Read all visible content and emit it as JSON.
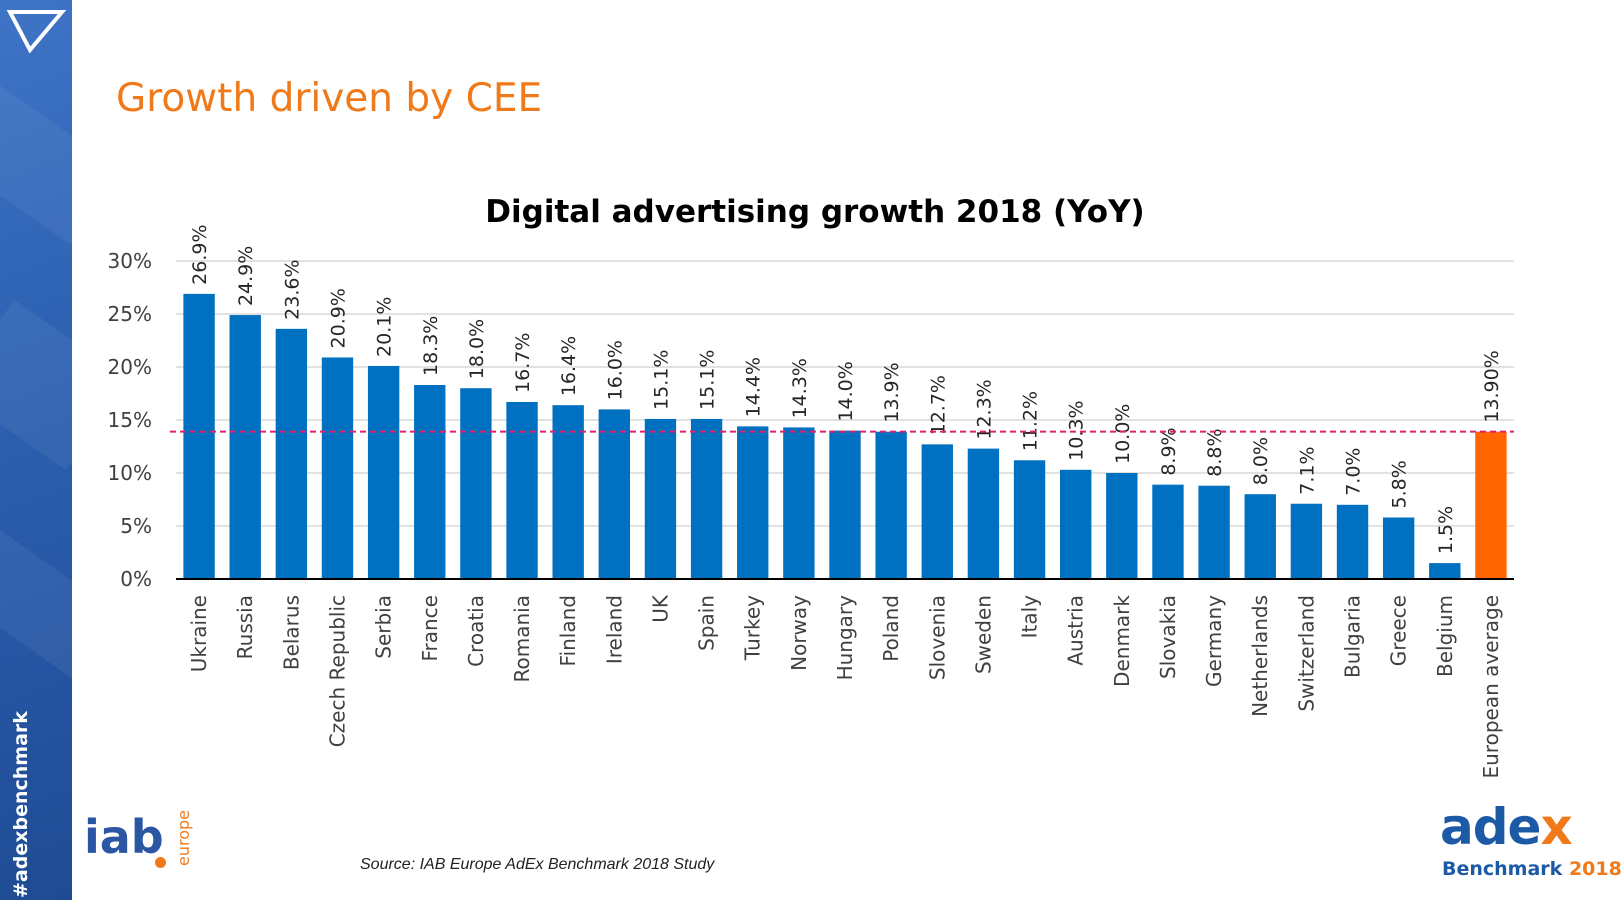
{
  "slide": {
    "title": "Growth driven by CEE",
    "hashtag": "#adexbenchmark",
    "source": "Source: IAB Europe AdEx Benchmark 2018 Study"
  },
  "logos": {
    "iab": {
      "text": "iab",
      "sub": "europe"
    },
    "adex": {
      "word_main": "ade",
      "word_accent": "x",
      "sub_main": "Benchmark ",
      "sub_year": "2018"
    }
  },
  "colors": {
    "bar": "#0070c0",
    "highlight_bar": "#ff6600",
    "average_line": "#e0226e",
    "title": "#f07a1a",
    "sidebar": "#2f63b4"
  },
  "chart_data": {
    "type": "bar",
    "title": "Digital advertising growth 2018 (YoY)",
    "xlabel": "",
    "ylabel": "",
    "ylim": [
      0,
      30
    ],
    "yticks": [
      0,
      5,
      10,
      15,
      20,
      25,
      30
    ],
    "ytick_labels": [
      "0%",
      "5%",
      "10%",
      "15%",
      "20%",
      "25%",
      "30%"
    ],
    "grid": true,
    "average_line_value": 13.9,
    "categories": [
      "Ukraine",
      "Russia",
      "Belarus",
      "Czech Republic",
      "Serbia",
      "France",
      "Croatia",
      "Romania",
      "Finland",
      "Ireland",
      "UK",
      "Spain",
      "Turkey",
      "Norway",
      "Hungary",
      "Poland",
      "Slovenia",
      "Sweden",
      "Italy",
      "Austria",
      "Denmark",
      "Slovakia",
      "Germany",
      "Netherlands",
      "Switzerland",
      "Bulgaria",
      "Greece",
      "Belgium",
      "European average"
    ],
    "values": [
      26.9,
      24.9,
      23.6,
      20.9,
      20.1,
      18.3,
      18.0,
      16.7,
      16.4,
      16.0,
      15.1,
      15.1,
      14.4,
      14.3,
      14.0,
      13.9,
      12.7,
      12.3,
      11.2,
      10.3,
      10.0,
      8.9,
      8.8,
      8.0,
      7.1,
      7.0,
      5.8,
      1.5,
      13.9
    ],
    "data_labels": [
      "26.9%",
      "24.9%",
      "23.6%",
      "20.9%",
      "20.1%",
      "18.3%",
      "18.0%",
      "16.7%",
      "16.4%",
      "16.0%",
      "15.1%",
      "15.1%",
      "14.4%",
      "14.3%",
      "14.0%",
      "13.9%",
      "12.7%",
      "12.3%",
      "11.2%",
      "10.3%",
      "10.0%",
      "8.9%",
      "8.8%",
      "8.0%",
      "7.1%",
      "7.0%",
      "5.8%",
      "1.5%",
      "13.90%"
    ],
    "highlight_category": "European average"
  }
}
